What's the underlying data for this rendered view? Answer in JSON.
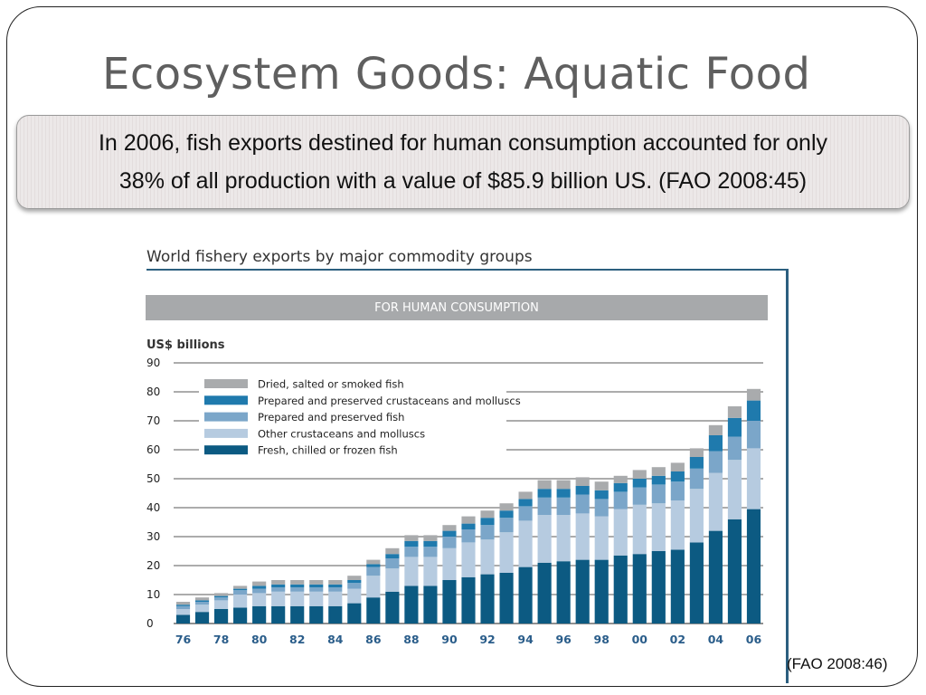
{
  "slide": {
    "title": "Ecosystem Goods: Aquatic Food",
    "callout_line1": "In 2006, fish exports destined for human consumption accounted for only",
    "callout_line2": "38% of all production with a value of $85.9 billion US. (FAO 2008:45)",
    "source": "(FAO 2008:46)"
  },
  "chart_data": {
    "type": "bar",
    "stacked": true,
    "title": "World fishery exports by major commodity groups",
    "subtitle": "FOR HUMAN CONSUMPTION",
    "ylabel": "US$ billions",
    "ylim": [
      0,
      90
    ],
    "yticks": [
      0,
      10,
      20,
      30,
      40,
      50,
      60,
      70,
      80,
      90
    ],
    "grid": true,
    "legend_position": "top-left",
    "categories": [
      "76",
      "77",
      "78",
      "79",
      "80",
      "81",
      "82",
      "83",
      "84",
      "85",
      "86",
      "87",
      "88",
      "89",
      "90",
      "91",
      "92",
      "93",
      "94",
      "95",
      "96",
      "97",
      "98",
      "99",
      "00",
      "01",
      "02",
      "03",
      "04",
      "05",
      "06"
    ],
    "xtick_labels": [
      "76",
      "78",
      "80",
      "82",
      "84",
      "86",
      "88",
      "90",
      "92",
      "94",
      "96",
      "98",
      "00",
      "02",
      "04",
      "06"
    ],
    "series": [
      {
        "name": "Fresh, chilled or frozen fish",
        "color": "#0c5a82",
        "values": [
          3,
          4,
          5,
          5.5,
          6,
          6,
          6,
          6,
          6,
          7,
          9,
          11,
          13,
          13,
          15,
          16,
          17,
          17.5,
          19.5,
          21,
          21.5,
          22,
          22,
          23.5,
          24,
          25,
          25.5,
          28,
          32,
          36,
          39.5
        ]
      },
      {
        "name": "Other crustaceans and molluscs",
        "color": "#b6cbe0",
        "values": [
          2,
          2.5,
          3,
          4.5,
          4.5,
          5,
          5,
          5,
          5,
          5,
          7.5,
          8,
          10,
          10,
          11,
          12,
          12,
          14,
          16,
          16.5,
          16,
          16,
          15,
          16,
          17,
          16.5,
          17,
          18.5,
          20,
          20.5,
          21
        ]
      },
      {
        "name": "Prepared and preserved fish",
        "color": "#7ba6c9",
        "values": [
          1,
          1,
          1,
          1.5,
          1.5,
          1.5,
          1.5,
          1.5,
          1.5,
          2,
          3,
          3.5,
          3.5,
          3.5,
          4,
          4.5,
          5,
          5,
          5,
          6,
          6,
          6.5,
          6,
          6,
          6,
          6.5,
          6.5,
          7,
          7.5,
          8,
          9.5
        ]
      },
      {
        "name": "Prepared and preserved crustaceans and molluscs",
        "color": "#1f7aad",
        "values": [
          0.5,
          0.5,
          0.5,
          0.5,
          1,
          1,
          1,
          1,
          1,
          1,
          1,
          1.5,
          2,
          2,
          2,
          2,
          2.5,
          2.5,
          2.5,
          3,
          3,
          3,
          3,
          3,
          3,
          3,
          3.5,
          4,
          5.5,
          6.5,
          7
        ]
      },
      {
        "name": "Dried, salted or smoked fish",
        "color": "#a9abad",
        "values": [
          1,
          1,
          1,
          1,
          1.5,
          1.5,
          1.5,
          1.5,
          1.5,
          1.5,
          1.5,
          2,
          2,
          2,
          2,
          2.5,
          2.5,
          2.5,
          2.5,
          3,
          3,
          3,
          3,
          2.5,
          3,
          3,
          3,
          3,
          3.5,
          4,
          4
        ]
      }
    ]
  }
}
